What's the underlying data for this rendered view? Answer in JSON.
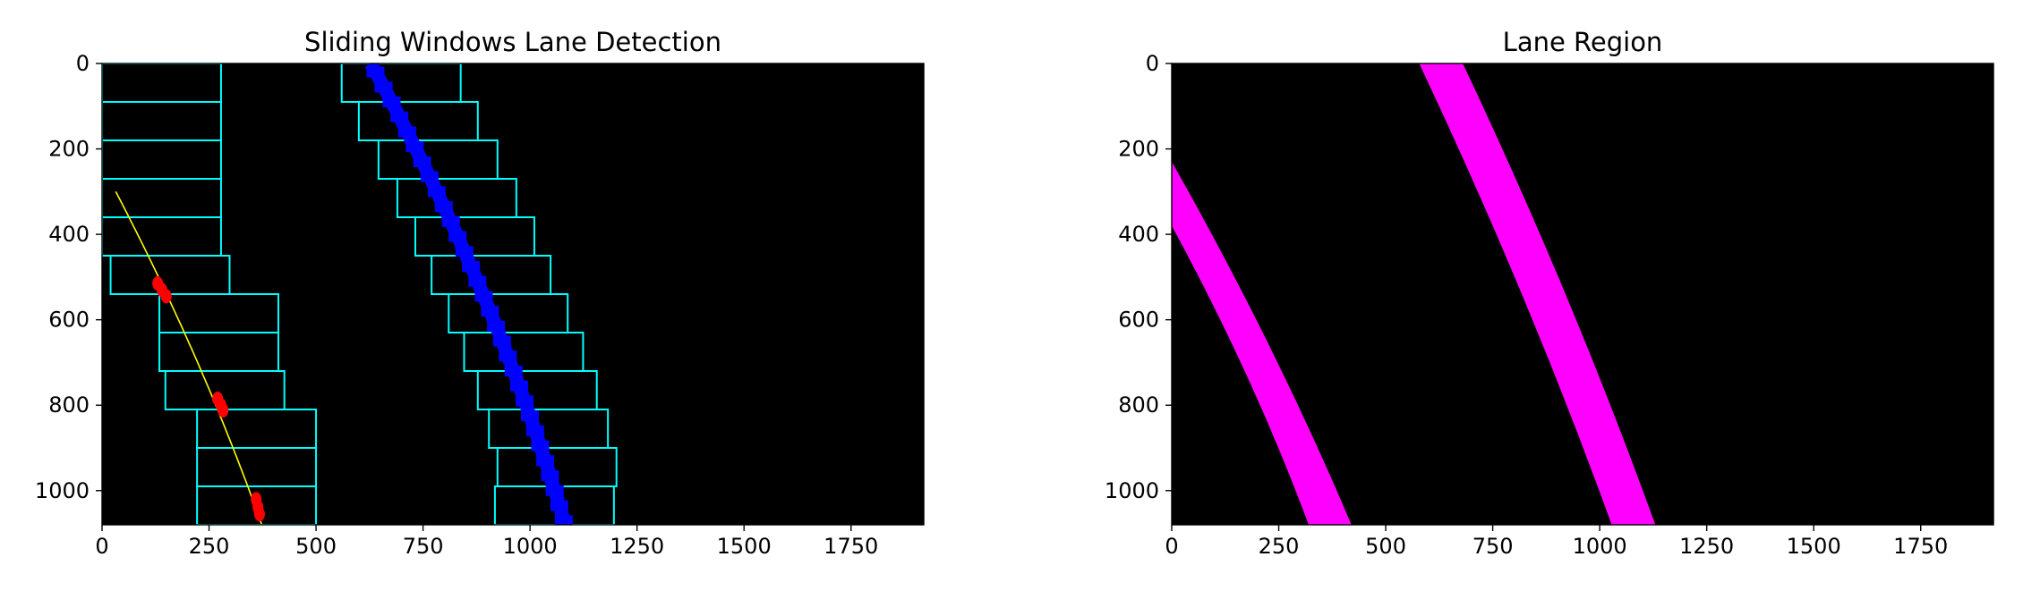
{
  "chart_data": [
    {
      "type": "image",
      "title": "Sliding Windows Lane Detection",
      "xlim": [
        0,
        1920
      ],
      "ylim": [
        1080,
        0
      ],
      "xticks": [
        0,
        250,
        500,
        750,
        1000,
        1250,
        1500,
        1750
      ],
      "yticks": [
        0,
        200,
        400,
        600,
        800,
        1000
      ],
      "background": "#000000",
      "windows": {
        "color": "#00ffff",
        "left": [
          {
            "x1": 0,
            "x2": 278,
            "y1": 0,
            "y2": 90
          },
          {
            "x1": 0,
            "x2": 278,
            "y1": 90,
            "y2": 180
          },
          {
            "x1": 0,
            "x2": 278,
            "y1": 180,
            "y2": 270
          },
          {
            "x1": 0,
            "x2": 278,
            "y1": 270,
            "y2": 360
          },
          {
            "x1": 0,
            "x2": 278,
            "y1": 360,
            "y2": 450
          },
          {
            "x1": 20,
            "x2": 298,
            "y1": 450,
            "y2": 540
          },
          {
            "x1": 134,
            "x2": 412,
            "y1": 540,
            "y2": 630
          },
          {
            "x1": 134,
            "x2": 412,
            "y1": 630,
            "y2": 720
          },
          {
            "x1": 148,
            "x2": 426,
            "y1": 720,
            "y2": 810
          },
          {
            "x1": 222,
            "x2": 500,
            "y1": 810,
            "y2": 900
          },
          {
            "x1": 222,
            "x2": 500,
            "y1": 900,
            "y2": 990
          },
          {
            "x1": 222,
            "x2": 500,
            "y1": 990,
            "y2": 1080
          }
        ],
        "right": [
          {
            "x1": 560,
            "x2": 838,
            "y1": 0,
            "y2": 90
          },
          {
            "x1": 600,
            "x2": 878,
            "y1": 90,
            "y2": 180
          },
          {
            "x1": 646,
            "x2": 924,
            "y1": 180,
            "y2": 270
          },
          {
            "x1": 690,
            "x2": 968,
            "y1": 270,
            "y2": 360
          },
          {
            "x1": 732,
            "x2": 1010,
            "y1": 360,
            "y2": 450
          },
          {
            "x1": 770,
            "x2": 1048,
            "y1": 450,
            "y2": 540
          },
          {
            "x1": 810,
            "x2": 1088,
            "y1": 540,
            "y2": 630
          },
          {
            "x1": 846,
            "x2": 1124,
            "y1": 630,
            "y2": 720
          },
          {
            "x1": 878,
            "x2": 1156,
            "y1": 720,
            "y2": 810
          },
          {
            "x1": 904,
            "x2": 1182,
            "y1": 810,
            "y2": 900
          },
          {
            "x1": 924,
            "x2": 1202,
            "y1": 900,
            "y2": 990
          },
          {
            "x1": 918,
            "x2": 1196,
            "y1": 990,
            "y2": 1080
          }
        ]
      },
      "left_fit": {
        "color": "#ffff00",
        "y_start": 300,
        "y_end": 1080,
        "coeffs": {
          "a": -0.000107,
          "b": 0.585,
          "c": -133.8
        }
      },
      "right_fit": {
        "color": "#0000ff",
        "y_start": 0,
        "y_end": 1080,
        "coeffs": {
          "a": -0.0001196,
          "b": 0.5493,
          "c": 628
        }
      },
      "left_pixels": {
        "color": "#ff0000",
        "clusters": [
          {
            "x": 130,
            "y": 515
          },
          {
            "x": 140,
            "y": 530
          },
          {
            "x": 150,
            "y": 545
          },
          {
            "x": 270,
            "y": 785
          },
          {
            "x": 278,
            "y": 800
          },
          {
            "x": 283,
            "y": 812
          },
          {
            "x": 360,
            "y": 1020
          },
          {
            "x": 364,
            "y": 1038
          },
          {
            "x": 368,
            "y": 1055
          }
        ]
      }
    },
    {
      "type": "image",
      "title": "Lane Region",
      "xlim": [
        0,
        1920
      ],
      "ylim": [
        1080,
        0
      ],
      "xticks": [
        0,
        250,
        500,
        750,
        1000,
        1250,
        1500,
        1750
      ],
      "yticks": [
        0,
        200,
        400,
        600,
        800,
        1000
      ],
      "background": "#000000",
      "lanes": [
        {
          "color": "#ff00ff",
          "inner_edge": [
            [
              0,
              380
            ],
            [
              320,
              1080
            ]
          ],
          "outer_edge": [
            [
              0,
              230
            ],
            [
              420,
              1080
            ]
          ]
        },
        {
          "color": "#ff00ff",
          "inner_edge": [
            [
              578,
              0
            ],
            [
              1028,
              1080
            ]
          ],
          "outer_edge": [
            [
              680,
              0
            ],
            [
              1130,
              1080
            ]
          ]
        }
      ]
    }
  ]
}
